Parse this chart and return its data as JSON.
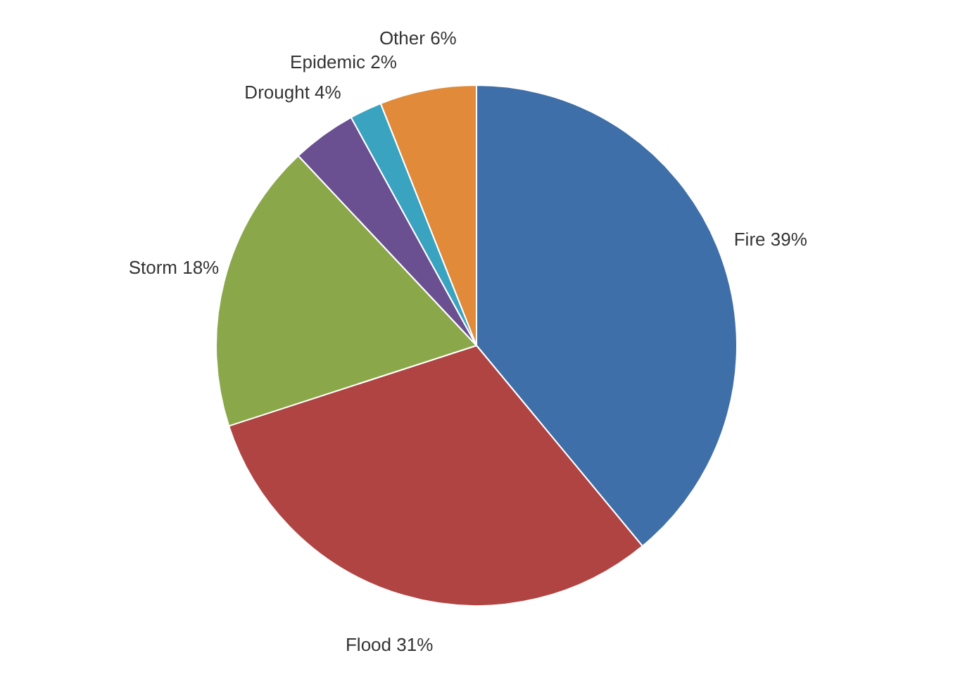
{
  "chart_data": {
    "type": "pie",
    "categories": [
      "Fire",
      "Flood",
      "Storm",
      "Drought",
      "Epidemic",
      "Other"
    ],
    "values": [
      39,
      31,
      18,
      4,
      2,
      6
    ],
    "value_labels": [
      "39%",
      "31%",
      "18%",
      "4%",
      "2%",
      "6%"
    ],
    "colors": [
      "#3f6fa8",
      "#b04442",
      "#8aa84a",
      "#6a4f91",
      "#3aa3c0",
      "#e08a3a"
    ],
    "legend": false
  }
}
